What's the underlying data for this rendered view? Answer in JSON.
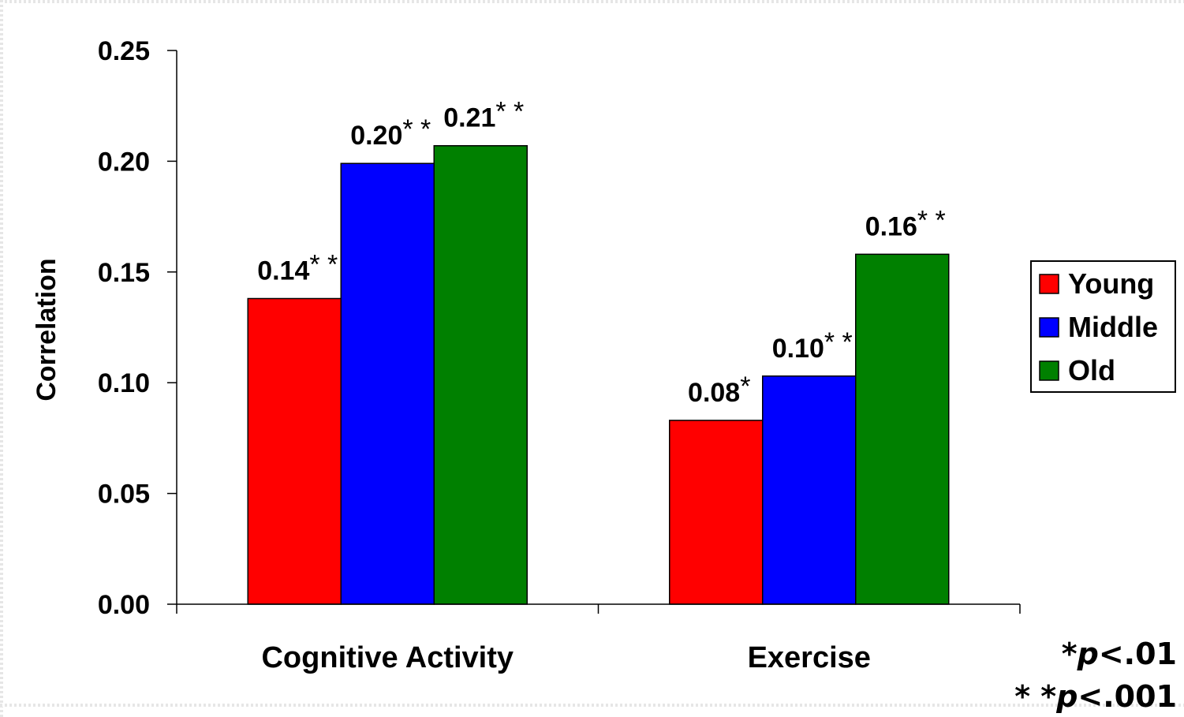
{
  "chart_data": {
    "type": "bar",
    "ylabel": "Correlation",
    "ylim": [
      0,
      0.25
    ],
    "yticks": [
      "0.00",
      "0.05",
      "0.10",
      "0.15",
      "0.20",
      "0.25"
    ],
    "categories": [
      "Cognitive Activity",
      "Exercise"
    ],
    "series": [
      {
        "name": "Young",
        "color": "#ff0000",
        "values": [
          0.138,
          0.083
        ],
        "labels": [
          {
            "value": "0.14",
            "stars": "* *"
          },
          {
            "value": "0.08",
            "stars": "*"
          }
        ]
      },
      {
        "name": "Middle",
        "color": "#0000ff",
        "values": [
          0.199,
          0.103
        ],
        "labels": [
          {
            "value": "0.20",
            "stars": "* *"
          },
          {
            "value": "0.10",
            "stars": "* *"
          }
        ]
      },
      {
        "name": "Old",
        "color": "#008000",
        "values": [
          0.207,
          0.158
        ],
        "labels": [
          {
            "value": "0.21",
            "stars": "* *"
          },
          {
            "value": "0.16",
            "stars": "* *"
          }
        ]
      }
    ],
    "legend_position": "right",
    "grid": false,
    "footnotes": [
      {
        "stars": "*",
        "p": "p",
        "text": "<.01"
      },
      {
        "stars": "* *",
        "p": "p",
        "text": "<.001"
      }
    ]
  }
}
